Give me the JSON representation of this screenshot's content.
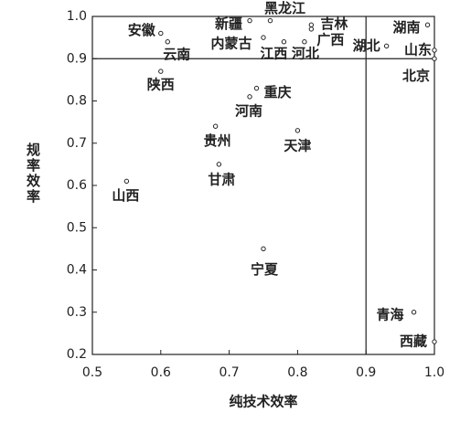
{
  "chart_data": {
    "type": "scatter",
    "xlabel": "纯技术效率",
    "ylabel": "规率效率",
    "point_labels": [
      "安徽",
      "云南",
      "陕西",
      "新疆",
      "内蒙古",
      "黑龙江",
      "江西",
      "河北",
      "吉林",
      "广西",
      "湖北",
      "湖南",
      "山东",
      "北京",
      "重庆",
      "河南",
      "天津",
      "贵州",
      "甘肃",
      "山西",
      "宁夏",
      "青海",
      "西藏"
    ],
    "x": [
      0.6,
      0.61,
      0.6,
      0.73,
      0.75,
      0.76,
      0.78,
      0.81,
      0.82,
      0.82,
      0.93,
      0.99,
      1.0,
      1.0,
      0.74,
      0.73,
      0.8,
      0.68,
      0.685,
      0.55,
      0.75,
      0.97,
      1.0
    ],
    "values": [
      0.96,
      0.94,
      0.87,
      0.99,
      0.95,
      0.99,
      0.94,
      0.94,
      0.98,
      0.97,
      0.93,
      0.98,
      0.92,
      0.9,
      0.83,
      0.81,
      0.73,
      0.74,
      0.65,
      0.61,
      0.45,
      0.3,
      0.23
    ],
    "xlim": [
      0.5,
      1
    ],
    "ylim": [
      0.2,
      1
    ],
    "xticks": [
      0.5,
      0.6,
      0.7,
      0.8,
      0.9,
      {
        "value": 1,
        "label": "1.0"
      }
    ],
    "yticks": [
      0.2,
      0.3,
      0.4,
      0.5,
      0.6,
      0.7,
      0.8,
      0.9,
      {
        "value": 1,
        "label": "1.0"
      }
    ],
    "ref_lines": {
      "x": 0.9,
      "y": 0.9
    },
    "color": "#222222"
  }
}
